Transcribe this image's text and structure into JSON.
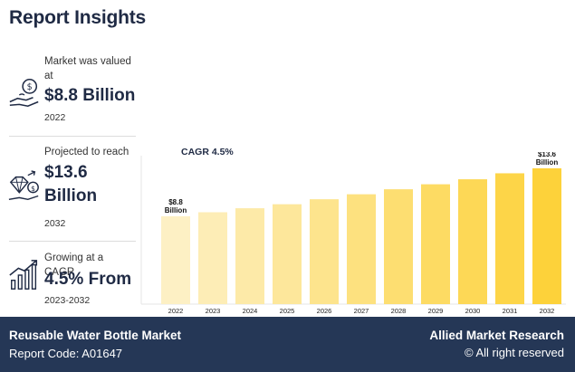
{
  "title": "Report Insights",
  "stats": [
    {
      "label": "Market was valued at",
      "value": "$8.8 Billion",
      "year": "2022",
      "icon": "money-hand-icon"
    },
    {
      "label": "Projected to reach",
      "value": "$13.6 Billion",
      "year": "2032",
      "icon": "growth-diamond-icon"
    },
    {
      "label": "Growing at a CAGR",
      "value": "4.5% From",
      "year": "2023-2032",
      "icon": "bar-growth-icon"
    }
  ],
  "chart_data": {
    "type": "bar",
    "title": "CAGR 4.5%",
    "categories": [
      "2022",
      "2023",
      "2024",
      "2025",
      "2026",
      "2027",
      "2028",
      "2029",
      "2030",
      "2031",
      "2032"
    ],
    "values": [
      8.8,
      9.2,
      9.6,
      10.0,
      10.5,
      11.0,
      11.5,
      12.0,
      12.5,
      13.1,
      13.6
    ],
    "annotations": [
      {
        "category": "2022",
        "text": [
          "$8.8",
          "Billion"
        ]
      },
      {
        "category": "2032",
        "text": [
          "$13.6",
          "Billion"
        ]
      }
    ],
    "ylim": [
      0,
      14.5
    ],
    "grid": false,
    "colors": {
      "start": "#fdf0c4",
      "end": "#fdd23a"
    }
  },
  "footer": {
    "market": "Reusable Water Bottle Market",
    "code": "Report Code: A01647",
    "brand": "Allied Market Research",
    "copyright": "© All right reserved"
  }
}
